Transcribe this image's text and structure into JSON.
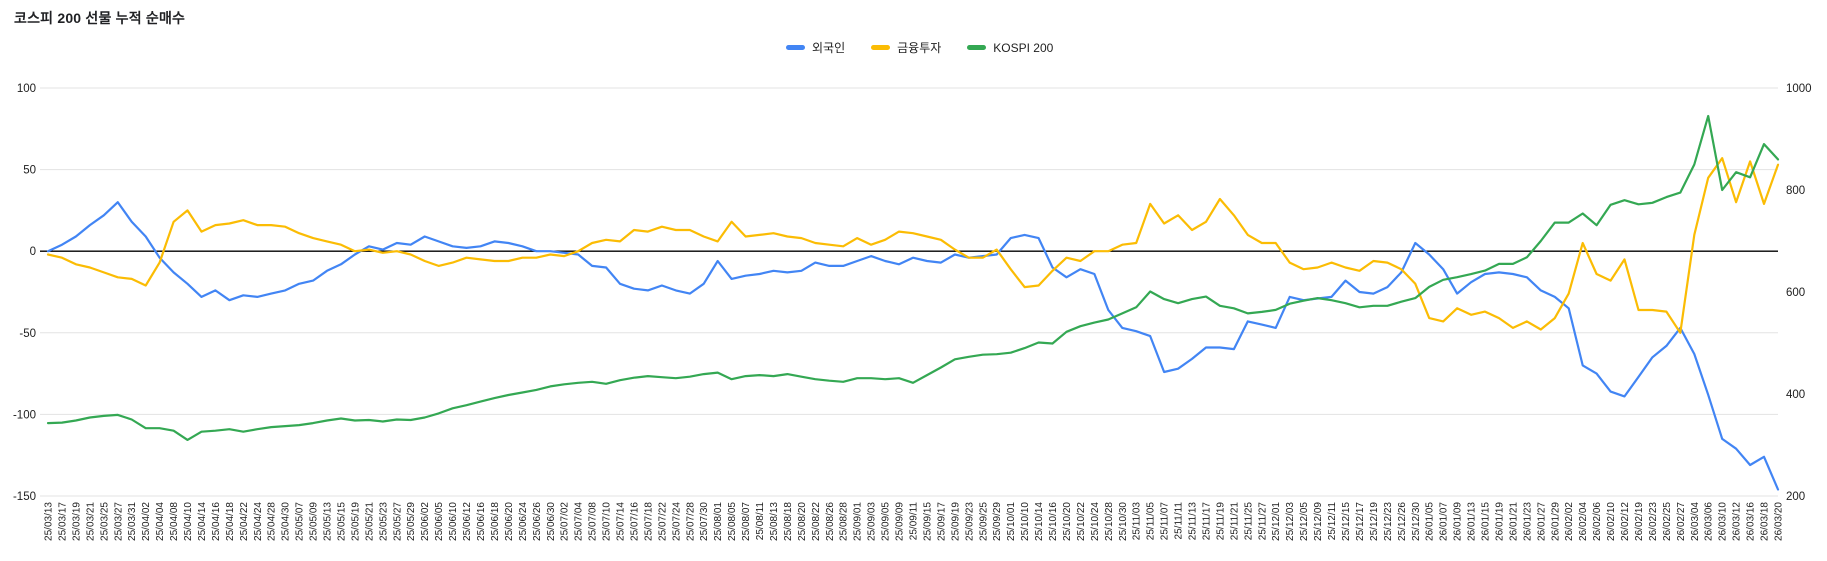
{
  "title": "코스피 200 선물 누적 순매수",
  "legend": [
    {
      "key": "foreign",
      "label": "외국인",
      "color": "#4285f4"
    },
    {
      "key": "financial-investment",
      "label": "금융투자",
      "color": "#fbbc04"
    },
    {
      "key": "kospi-200",
      "label": "KOSPI 200",
      "color": "#34a853"
    }
  ],
  "colors": {
    "grid": "#e3e3e3",
    "zero_line": "#000000",
    "tick_text": "#212121",
    "title_text": "#202124",
    "background": "#ffffff"
  },
  "chart_data": {
    "type": "line",
    "title": "코스피 200 선물 누적 순매수",
    "grid": true,
    "legend_position": "top-center",
    "left_axis": {
      "ticks": [
        100,
        50,
        0,
        -50,
        -100,
        -150
      ],
      "range": [
        -150,
        100
      ]
    },
    "right_axis": {
      "ticks": [
        1000,
        800,
        600,
        400,
        200
      ],
      "range": [
        200,
        1000
      ]
    },
    "x": [
      "25/03/13",
      "25/03/17",
      "25/03/19",
      "25/03/21",
      "25/03/25",
      "25/03/27",
      "25/03/31",
      "25/04/02",
      "25/04/04",
      "25/04/08",
      "25/04/10",
      "25/04/14",
      "25/04/16",
      "25/04/18",
      "25/04/22",
      "25/04/24",
      "25/04/28",
      "25/04/30",
      "25/05/07",
      "25/05/09",
      "25/05/13",
      "25/05/15",
      "25/05/19",
      "25/05/21",
      "25/05/23",
      "25/05/27",
      "25/05/29",
      "25/06/02",
      "25/06/05",
      "25/06/10",
      "25/06/12",
      "25/06/16",
      "25/06/18",
      "25/06/20",
      "25/06/24",
      "25/06/26",
      "25/06/30",
      "25/07/02",
      "25/07/04",
      "25/07/08",
      "25/07/10",
      "25/07/14",
      "25/07/16",
      "25/07/18",
      "25/07/22",
      "25/07/24",
      "25/07/28",
      "25/07/30",
      "25/08/01",
      "25/08/05",
      "25/08/07",
      "25/08/11",
      "25/08/13",
      "25/08/18",
      "25/08/20",
      "25/08/22",
      "25/08/26",
      "25/08/28",
      "25/09/01",
      "25/09/03",
      "25/09/05",
      "25/09/09",
      "25/09/11",
      "25/09/15",
      "25/09/17",
      "25/09/19",
      "25/09/23",
      "25/09/25",
      "25/09/29",
      "25/10/01",
      "25/10/10",
      "25/10/14",
      "25/10/16",
      "25/10/20",
      "25/10/22",
      "25/10/24",
      "25/10/28",
      "25/10/30",
      "25/11/03",
      "25/11/05",
      "25/11/07",
      "25/11/11",
      "25/11/13",
      "25/11/17",
      "25/11/19",
      "25/11/21",
      "25/11/25",
      "25/11/27",
      "25/12/01",
      "25/12/03",
      "25/12/05",
      "25/12/09",
      "25/12/11",
      "25/12/15",
      "25/12/17",
      "25/12/19",
      "25/12/23",
      "25/12/26",
      "25/12/30",
      "26/01/05",
      "26/01/07",
      "26/01/09",
      "26/01/13",
      "26/01/15",
      "26/01/19",
      "26/01/21",
      "26/01/23",
      "26/01/27",
      "26/01/29",
      "26/02/02",
      "26/02/04",
      "26/02/06",
      "26/02/10",
      "26/02/12",
      "26/02/19",
      "26/02/23",
      "26/02/25",
      "26/02/27",
      "26/03/04",
      "26/03/06",
      "26/03/10",
      "26/03/12",
      "26/03/16",
      "26/03/18",
      "26/03/20"
    ],
    "series": [
      {
        "name": "외국인",
        "key": "foreign",
        "axis": "left",
        "color": "#4285f4",
        "values": [
          0,
          4,
          9,
          16,
          22,
          30,
          18,
          9,
          -4,
          -13,
          -20,
          -28,
          -24,
          -30,
          -27,
          -28,
          -26,
          -24,
          -20,
          -18,
          -12,
          -8,
          -2,
          3,
          1,
          5,
          4,
          9,
          6,
          3,
          2,
          3,
          6,
          5,
          3,
          0,
          0,
          -1,
          -2,
          -9,
          -10,
          -20,
          -23,
          -24,
          -21,
          -24,
          -26,
          -20,
          -6,
          -17,
          -15,
          -14,
          -12,
          -13,
          -12,
          -7,
          -9,
          -9,
          -6,
          -3,
          -6,
          -8,
          -4,
          -6,
          -7,
          -2,
          -4,
          -3,
          -2,
          8,
          10,
          8,
          -10,
          -16,
          -11,
          -14,
          -36,
          -47,
          -49,
          -52,
          -74,
          -72,
          -66,
          -59,
          -59,
          -60,
          -43,
          -45,
          -47,
          -28,
          -30,
          -29,
          -28,
          -18,
          -25,
          -26,
          -22,
          -13,
          5,
          -2,
          -11,
          -26,
          -19,
          -14,
          -13,
          -14,
          -16,
          -24,
          -28,
          -35,
          -70,
          -75,
          -86,
          -89,
          -77,
          -65,
          -58,
          -47,
          -63,
          -88,
          -115,
          -121,
          -131,
          -126,
          -146
        ]
      },
      {
        "name": "금융투자",
        "key": "financial-investment",
        "axis": "left",
        "color": "#fbbc04",
        "values": [
          -2,
          -4,
          -8,
          -10,
          -13,
          -16,
          -17,
          -21,
          -7,
          18,
          25,
          12,
          16,
          17,
          19,
          16,
          16,
          15,
          11,
          8,
          6,
          4,
          0,
          1,
          -1,
          0,
          -2,
          -6,
          -9,
          -7,
          -4,
          -5,
          -6,
          -6,
          -4,
          -4,
          -2,
          -3,
          0,
          5,
          7,
          6,
          13,
          12,
          15,
          13,
          13,
          9,
          6,
          18,
          9,
          10,
          11,
          9,
          8,
          5,
          4,
          3,
          8,
          4,
          7,
          12,
          11,
          9,
          7,
          1,
          -4,
          -4,
          1,
          -11,
          -22,
          -21,
          -12,
          -4,
          -6,
          0,
          0,
          4,
          5,
          29,
          17,
          22,
          13,
          18,
          32,
          22,
          10,
          5,
          5,
          -7,
          -11,
          -10,
          -7,
          -10,
          -12,
          -6,
          -7,
          -11,
          -20,
          -41,
          -43,
          -35,
          -39,
          -37,
          -41,
          -47,
          -43,
          -48,
          -41,
          -26,
          5,
          -14,
          -18,
          -5,
          -36,
          -36,
          -37,
          -50,
          10,
          45,
          57,
          30,
          55,
          29,
          53
        ]
      },
      {
        "name": "KOSPI 200",
        "key": "kospi-200",
        "axis": "right",
        "color": "#34a853",
        "values": [
          343,
          344,
          348,
          354,
          357,
          359,
          350,
          333,
          333,
          328,
          310,
          326,
          328,
          331,
          326,
          331,
          335,
          337,
          339,
          343,
          348,
          352,
          348,
          349,
          346,
          350,
          349,
          354,
          362,
          372,
          378,
          385,
          392,
          398,
          403,
          408,
          415,
          419,
          422,
          424,
          420,
          427,
          432,
          435,
          433,
          431,
          434,
          439,
          442,
          429,
          435,
          437,
          435,
          439,
          434,
          429,
          426,
          424,
          431,
          431,
          429,
          431,
          422,
          437,
          452,
          468,
          473,
          477,
          478,
          481,
          490,
          501,
          499,
          522,
          533,
          540,
          546,
          558,
          570,
          601,
          586,
          578,
          586,
          591,
          573,
          568,
          558,
          561,
          565,
          577,
          583,
          588,
          584,
          578,
          570,
          573,
          573,
          581,
          588,
          610,
          624,
          629,
          635,
          642,
          655,
          655,
          668,
          700,
          736,
          736,
          754,
          731,
          771,
          780,
          772,
          775,
          786,
          795,
          850,
          945,
          800,
          835,
          825,
          890,
          860
        ]
      }
    ]
  }
}
